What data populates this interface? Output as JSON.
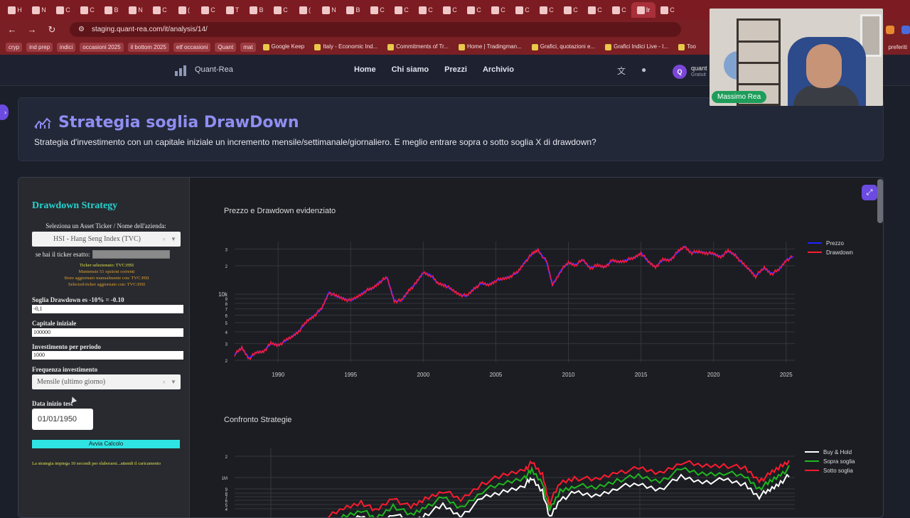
{
  "browser": {
    "tabs": [
      "H",
      "N",
      "C",
      "C",
      "B",
      "N",
      "C",
      "(",
      "C",
      "T",
      "B",
      "C",
      "(",
      "N",
      "B",
      "C",
      "C",
      "C",
      "C",
      "C",
      "C",
      "C",
      "C",
      "C",
      "C",
      "C",
      "Ir",
      "C"
    ],
    "active_tab_label": "C",
    "url": "staging.quant-rea.com/it/analysis/14/",
    "bookmarks": [
      {
        "label": "cryp",
        "chip": true
      },
      {
        "label": "ind prep",
        "chip": true
      },
      {
        "label": "indici",
        "chip": true
      },
      {
        "label": "occasioni 2025",
        "chip": true
      },
      {
        "label": "il bottom 2025",
        "chip": true
      },
      {
        "label": "etf occasioni",
        "chip": true
      },
      {
        "label": "Quant",
        "chip": true
      },
      {
        "label": "mat",
        "chip": true
      },
      {
        "label": "Google Keep",
        "chip": false
      },
      {
        "label": "Italy - Economic Ind...",
        "chip": false
      },
      {
        "label": "Commitments of Tr...",
        "chip": false
      },
      {
        "label": "Home | Tradingman...",
        "chip": false
      },
      {
        "label": "Grafici, quotazioni e...",
        "chip": false
      },
      {
        "label": "Grafici Indici Live - I...",
        "chip": false
      },
      {
        "label": "Too",
        "chip": false
      }
    ],
    "bookmarks_overflow": "preferiti"
  },
  "site": {
    "logo_text": "Quant-Rea",
    "nav": [
      "Home",
      "Chi siamo",
      "Prezzi",
      "Archivio"
    ],
    "avatar_letter": "Q",
    "user_name": "quant",
    "user_plan": "Gratuit"
  },
  "hero": {
    "title": "Strategia soglia DrawDown",
    "subtitle": "Strategia d'investimento con un capitale iniziale un incremento mensile/settimanale/giornaliero. E meglio entrare sopra o sotto soglia X di drawdown?"
  },
  "panel": {
    "title": "Drawdown Strategy",
    "asset_label": "Seleziona un Asset Ticker / Nome dell'azienda:",
    "asset_value": "HSI - Hang Seng Index (TVC)",
    "ticker_exact_label": "se hai il ticker esatto:",
    "info_lines": [
      {
        "text": "Ticker selezionato: TVC:HSI",
        "color": "#e3e34a"
      },
      {
        "text": "Mantenute 51 opzioni correnti",
        "color": "#e0a030"
      },
      {
        "text": "Store aggiornato manualmente con: TVC:HSI",
        "color": "#e0a030"
      },
      {
        "text": "Selected-ticker aggiornato con: TVC:HSI",
        "color": "#e0a030"
      }
    ],
    "threshold_label": "Soglia Drawdown es -10% = -0.10",
    "threshold_value": "-0,1",
    "capital_label": "Capitale iniziale",
    "capital_value": "100000",
    "invest_label": "Investimento per periodo",
    "invest_value": "1000",
    "freq_label": "Frequenza investimento",
    "freq_value": "Mensile (ultimo giorno)",
    "date_label": "Data inizio test",
    "date_value": "01/01/1950",
    "run_button": "Avvia Calcolo",
    "note": "La strategia impiega 10 secondi per elaborarsi...attendi il caricamento"
  },
  "chart_data": [
    {
      "type": "line",
      "title": "Prezzo e Drawdown evidenziato",
      "xlabel": "",
      "ylabel": "",
      "x_ticks": [
        "1990",
        "1995",
        "2000",
        "2005",
        "2010",
        "2015",
        "2020",
        "2025"
      ],
      "y_scale": "log",
      "y_tick_labels": [
        "2",
        "3",
        "4",
        "5",
        "6",
        "7",
        "8",
        "9",
        "10k",
        "2",
        "3"
      ],
      "series": [
        {
          "name": "Prezzo",
          "color": "#2222ff"
        },
        {
          "name": "Drawdown",
          "color": "#ff1a2e"
        }
      ],
      "x": [
        1987.0,
        1987.5,
        1988.0,
        1988.5,
        1989.0,
        1989.5,
        1990.0,
        1990.5,
        1991.0,
        1991.5,
        1992.0,
        1992.5,
        1993.0,
        1993.5,
        1994.0,
        1994.5,
        1995.0,
        1995.5,
        1996.0,
        1996.5,
        1997.0,
        1997.5,
        1998.0,
        1998.5,
        1999.0,
        1999.5,
        2000.0,
        2000.5,
        2001.0,
        2001.5,
        2002.0,
        2002.5,
        2003.0,
        2003.5,
        2004.0,
        2004.5,
        2005.0,
        2005.5,
        2006.0,
        2006.5,
        2007.0,
        2007.5,
        2007.9,
        2008.5,
        2008.9,
        2009.5,
        2010.0,
        2010.5,
        2011.0,
        2011.5,
        2012.0,
        2012.5,
        2013.0,
        2013.5,
        2014.0,
        2014.5,
        2015.0,
        2015.5,
        2016.0,
        2016.5,
        2017.0,
        2017.5,
        2018.0,
        2018.5,
        2019.0,
        2019.5,
        2020.0,
        2020.5,
        2021.0,
        2021.5,
        2022.0,
        2022.5,
        2022.9,
        2023.5,
        2024.0,
        2024.5,
        2025.0,
        2025.5
      ],
      "values": [
        2300,
        2700,
        2100,
        2400,
        2500,
        3000,
        2900,
        3200,
        3600,
        4200,
        5200,
        6000,
        7000,
        10500,
        9500,
        9000,
        8500,
        9500,
        10800,
        11500,
        13500,
        15000,
        8500,
        8500,
        11000,
        13000,
        17000,
        16000,
        13000,
        12500,
        11000,
        10000,
        9500,
        11500,
        13000,
        12500,
        14000,
        14500,
        15500,
        17000,
        22000,
        26500,
        29500,
        22000,
        12500,
        18000,
        21500,
        20500,
        23000,
        19000,
        20000,
        19500,
        22500,
        22000,
        23000,
        24000,
        27500,
        22000,
        19500,
        23000,
        23000,
        27500,
        32000,
        27500,
        28000,
        27500,
        26500,
        25000,
        28500,
        26000,
        21000,
        18000,
        15500,
        19000,
        16500,
        18000,
        23000,
        25000
      ]
    },
    {
      "type": "line",
      "title": "Confronto Strategie",
      "xlabel": "",
      "ylabel": "",
      "y_scale": "log",
      "y_tick_labels": [
        "4",
        "5",
        "6",
        "7",
        "8",
        "9",
        "1M",
        "2"
      ],
      "series": [
        {
          "name": "Buy & Hold",
          "color": "#ffffff"
        },
        {
          "name": "Sopra soglia",
          "color": "#1fb51f"
        },
        {
          "name": "Sotto soglia",
          "color": "#ff1a2e"
        }
      ]
    }
  ],
  "webcam": {
    "name": "Massimo Rea"
  }
}
